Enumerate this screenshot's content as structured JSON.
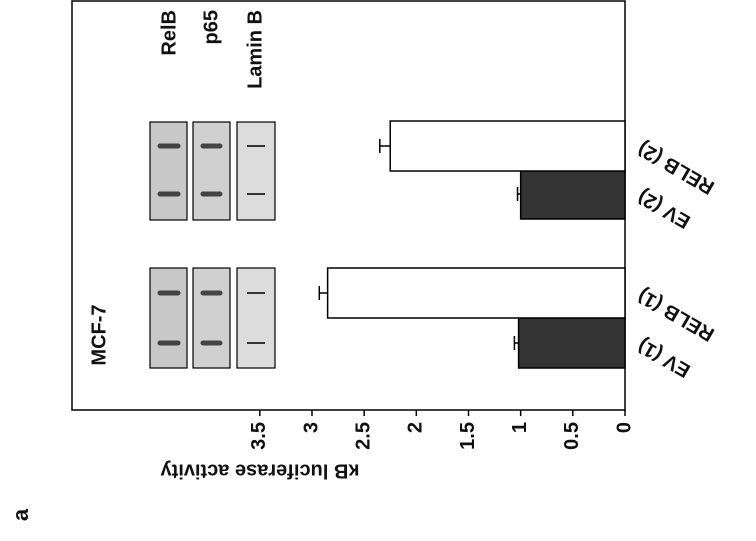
{
  "chart_data": {
    "type": "bar",
    "y_label": "κB luciferase activity",
    "categories": [
      "EV (1)",
      "RELB (1)",
      "EV (2)",
      "RELB (2)"
    ],
    "values": [
      1.02,
      2.85,
      1.0,
      2.25
    ],
    "errors": [
      0.04,
      0.08,
      0.03,
      0.1
    ],
    "colors": [
      "#333333",
      "#ffffff",
      "#333333",
      "#ffffff"
    ],
    "ylim": [
      0,
      5.3
    ],
    "yticks": [
      0,
      0.5,
      1,
      1.5,
      2,
      2.5,
      3,
      3.5
    ],
    "cell_line": "MCF-7",
    "blot_labels": [
      "RelB",
      "p65",
      "Lamin B"
    ],
    "panel_label": "a"
  }
}
